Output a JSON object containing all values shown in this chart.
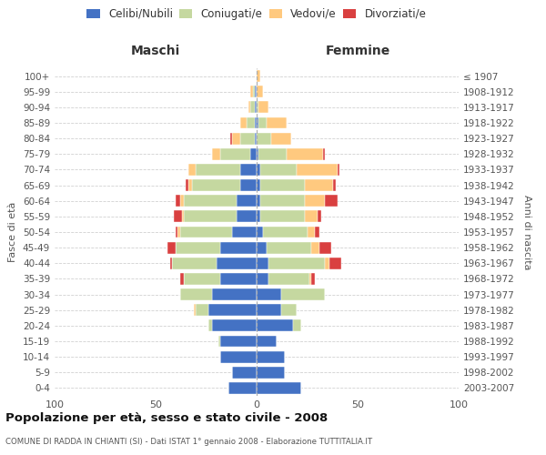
{
  "age_groups": [
    "0-4",
    "5-9",
    "10-14",
    "15-19",
    "20-24",
    "25-29",
    "30-34",
    "35-39",
    "40-44",
    "45-49",
    "50-54",
    "55-59",
    "60-64",
    "65-69",
    "70-74",
    "75-79",
    "80-84",
    "85-89",
    "90-94",
    "95-99",
    "100+"
  ],
  "birth_years": [
    "2003-2007",
    "1998-2002",
    "1993-1997",
    "1988-1992",
    "1983-1987",
    "1978-1982",
    "1973-1977",
    "1968-1972",
    "1963-1967",
    "1958-1962",
    "1953-1957",
    "1948-1952",
    "1943-1947",
    "1938-1942",
    "1933-1937",
    "1928-1932",
    "1923-1927",
    "1918-1922",
    "1913-1917",
    "1908-1912",
    "≤ 1907"
  ],
  "colors": {
    "celibi": "#4472c4",
    "coniugati": "#c5d8a0",
    "vedovi": "#ffc97f",
    "divorziati": "#d94040"
  },
  "maschi": {
    "celibi": [
      14,
      12,
      18,
      18,
      22,
      24,
      22,
      18,
      20,
      18,
      12,
      10,
      10,
      8,
      8,
      3,
      1,
      1,
      1,
      1,
      0
    ],
    "coniugati": [
      0,
      0,
      0,
      1,
      2,
      6,
      16,
      18,
      22,
      22,
      26,
      26,
      26,
      24,
      22,
      15,
      7,
      4,
      2,
      1,
      0
    ],
    "vedovi": [
      0,
      0,
      0,
      0,
      0,
      1,
      0,
      0,
      0,
      0,
      1,
      1,
      2,
      2,
      4,
      4,
      4,
      3,
      1,
      1,
      0
    ],
    "divorziati": [
      0,
      0,
      0,
      0,
      0,
      0,
      0,
      2,
      1,
      4,
      1,
      4,
      2,
      1,
      0,
      0,
      1,
      0,
      0,
      0,
      0
    ]
  },
  "femmine": {
    "celibi": [
      22,
      14,
      14,
      10,
      18,
      12,
      12,
      6,
      6,
      5,
      3,
      2,
      2,
      2,
      2,
      1,
      0,
      1,
      0,
      0,
      0
    ],
    "coniugati": [
      0,
      0,
      0,
      0,
      4,
      8,
      22,
      20,
      28,
      22,
      22,
      22,
      22,
      22,
      18,
      14,
      7,
      4,
      1,
      0,
      0
    ],
    "vedovi": [
      0,
      0,
      0,
      0,
      0,
      0,
      0,
      1,
      2,
      4,
      4,
      6,
      10,
      14,
      20,
      18,
      10,
      10,
      5,
      3,
      2
    ],
    "divorziati": [
      0,
      0,
      0,
      0,
      0,
      0,
      0,
      2,
      6,
      6,
      2,
      2,
      6,
      1,
      1,
      1,
      0,
      0,
      0,
      0,
      0
    ]
  },
  "title": "Popolazione per età, sesso e stato civile - 2008",
  "subtitle": "COMUNE DI RADDA IN CHIANTI (SI) - Dati ISTAT 1° gennaio 2008 - Elaborazione TUTTITALIA.IT",
  "xlabel_left": "Maschi",
  "xlabel_right": "Femmine",
  "ylabel_left": "Fasce di età",
  "ylabel_right": "Anni di nascita",
  "xlim": 100,
  "legend_labels": [
    "Celibi/Nubili",
    "Coniugati/e",
    "Vedovi/e",
    "Divorziati/e"
  ],
  "background_color": "#ffffff",
  "grid_color": "#cccccc"
}
